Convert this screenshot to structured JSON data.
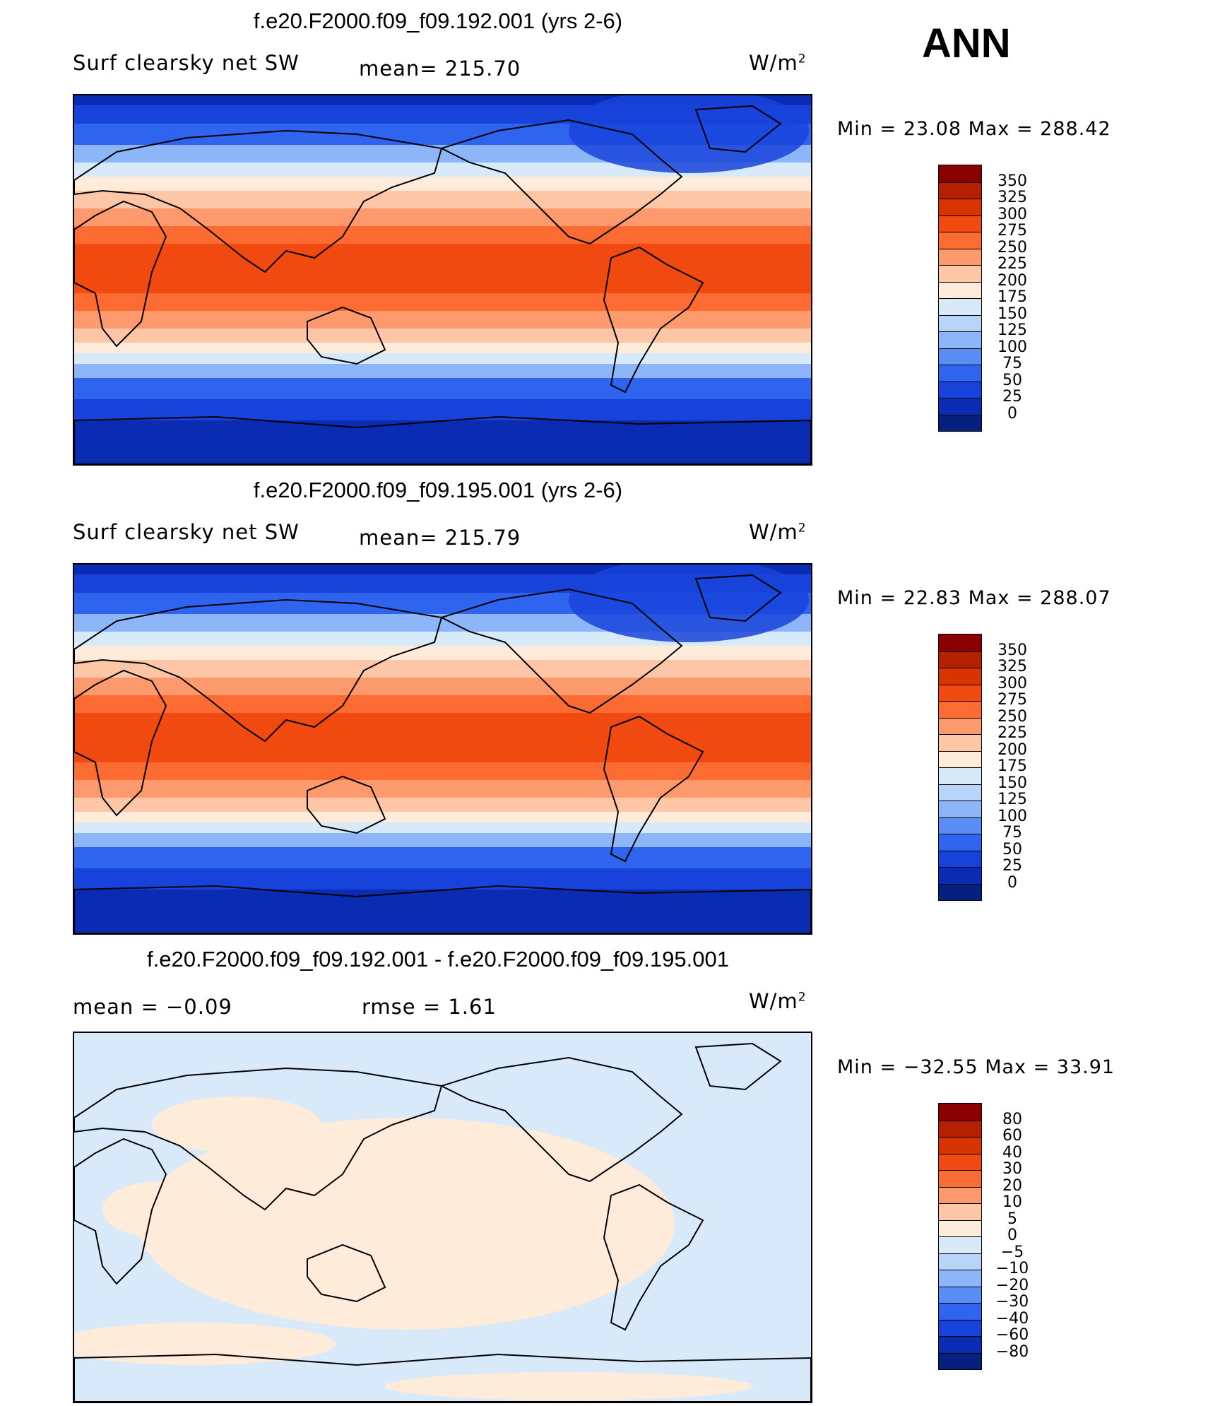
{
  "season": "ANN",
  "panels": [
    {
      "id": "p1",
      "title": "f.e20.F2000.f09_f09.192.001 (yrs 2-6)",
      "variable": "Surf clearsky net SW",
      "stat_text": "mean= 215.70",
      "units_base": "W/m",
      "units_exp": "2",
      "minmax": "Min =   23.08 Max = 288.42",
      "colorbar_colors": [
        "#8b0000",
        "#b52000",
        "#d83400",
        "#f04a10",
        "#fb6b32",
        "#fc9a6e",
        "#fdc6a6",
        "#feebd9",
        "#d8e9f9",
        "#b8d4f8",
        "#8cb6f7",
        "#5b8ef5",
        "#2e64ee",
        "#1743da",
        "#0a2cb3",
        "#06207f"
      ],
      "colorbar_labels": [
        "350",
        "325",
        "300",
        "275",
        "250",
        "225",
        "200",
        "175",
        "150",
        "125",
        "100",
        "75",
        "50",
        "25",
        "0"
      ],
      "map_type": "absolute"
    },
    {
      "id": "p2",
      "title": "f.e20.F2000.f09_f09.195.001 (yrs 2-6)",
      "variable": "Surf clearsky net SW",
      "stat_text": "mean= 215.79",
      "units_base": "W/m",
      "units_exp": "2",
      "minmax": "Min =   22.83 Max = 288.07",
      "colorbar_colors": [
        "#8b0000",
        "#b52000",
        "#d83400",
        "#f04a10",
        "#fb6b32",
        "#fc9a6e",
        "#fdc6a6",
        "#feebd9",
        "#d8e9f9",
        "#b8d4f8",
        "#8cb6f7",
        "#5b8ef5",
        "#2e64ee",
        "#1743da",
        "#0a2cb3",
        "#06207f"
      ],
      "colorbar_labels": [
        "350",
        "325",
        "300",
        "275",
        "250",
        "225",
        "200",
        "175",
        "150",
        "125",
        "100",
        "75",
        "50",
        "25",
        "0"
      ],
      "map_type": "absolute"
    },
    {
      "id": "p3",
      "title": "f.e20.F2000.f09_f09.192.001 - f.e20.F2000.f09_f09.195.001",
      "mean_text": "mean =    −0.09",
      "rmse_text": "rmse =     1.61",
      "units_base": "W/m",
      "units_exp": "2",
      "minmax": "Min = −32.55 Max =   33.91",
      "colorbar_colors": [
        "#8b0000",
        "#b52000",
        "#d83400",
        "#f04a10",
        "#fb6b32",
        "#fc9a6e",
        "#fdc6a6",
        "#feebd9",
        "#d8e9f9",
        "#b8d4f8",
        "#8cb6f7",
        "#5b8ef5",
        "#2e64ee",
        "#1743da",
        "#0a2cb3",
        "#06207f"
      ],
      "colorbar_labels": [
        "80",
        "60",
        "40",
        "30",
        "20",
        "10",
        "5",
        "0",
        "−5",
        "−10",
        "−20",
        "−30",
        "−40",
        "−60",
        "−80"
      ],
      "map_type": "difference"
    }
  ]
}
